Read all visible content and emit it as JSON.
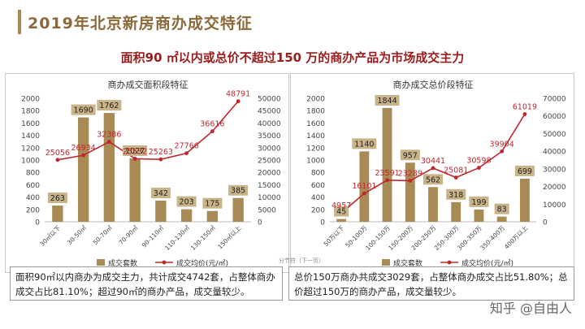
{
  "page": {
    "title": "2019年北京新房商办成交特征",
    "subtitle": "面积90 ㎡以内或总价不超过150 万的商办产品为市场成交主力",
    "page_hint": "分节符（下一页）",
    "watermark": "知乎 @自由人",
    "accent_color": "#a88a55",
    "line_color": "#c0272d",
    "notes": [
      "面积90㎡以内商办为成交主力，共计成交4742套，占整体商办成交占比81.10%；超过90㎡的商办产品，成交量较少。",
      "总价150万商办共成交3029套，占整体商办成交占比51.80%；总价超过150万的商办产品，成交量较少。"
    ]
  },
  "chart_data": [
    {
      "type": "bar",
      "title": "商办成交面积段特征",
      "categories": [
        "30㎡以下",
        "30-50㎡",
        "50-70㎡",
        "70-90㎡",
        "90-110㎡",
        "110-130㎡",
        "130-150㎡",
        "150㎡以上"
      ],
      "series": [
        {
          "name": "成交套数",
          "type": "bar",
          "axis": "left",
          "values": [
            263,
            1690,
            1762,
            1027,
            342,
            203,
            175,
            385
          ]
        },
        {
          "name": "成交均价(元/㎡)",
          "type": "line",
          "axis": "right",
          "values": [
            25056,
            26934,
            32386,
            25532,
            25263,
            27766,
            36616,
            48791
          ]
        }
      ],
      "ylim_left": [
        0,
        2000
      ],
      "yticks_left": [
        0,
        200,
        400,
        600,
        800,
        1000,
        1200,
        1400,
        1600,
        1800,
        2000
      ],
      "ylim_right": [
        0,
        50000
      ],
      "yticks_right": [
        0,
        5000,
        10000,
        15000,
        20000,
        25000,
        30000,
        35000,
        40000,
        45000,
        50000
      ],
      "legend": "bottom",
      "grid": false
    },
    {
      "type": "bar",
      "title": "商办成交总价段特征",
      "categories": [
        "50万以下",
        "50-100万",
        "100-150万",
        "150-200万",
        "200-250万",
        "250-300万",
        "300-350万",
        "350-400万",
        "400万以上"
      ],
      "series": [
        {
          "name": "成交套数",
          "type": "bar",
          "axis": "left",
          "values": [
            45,
            1140,
            1844,
            957,
            562,
            318,
            199,
            83,
            699
          ]
        },
        {
          "name": "成交均价(元/㎡)",
          "type": "line",
          "axis": "right",
          "values": [
            4957,
            16101,
            23591,
            23289,
            30441,
            25081,
            30598,
            39904,
            61019
          ]
        }
      ],
      "ylim_left": [
        0,
        2000
      ],
      "yticks_left": [
        0,
        200,
        400,
        600,
        800,
        1000,
        1200,
        1400,
        1600,
        1800,
        2000
      ],
      "ylim_right": [
        0,
        70000
      ],
      "yticks_right": [
        0,
        10000,
        20000,
        30000,
        40000,
        50000,
        60000,
        70000
      ],
      "legend": "bottom",
      "grid": false
    }
  ]
}
